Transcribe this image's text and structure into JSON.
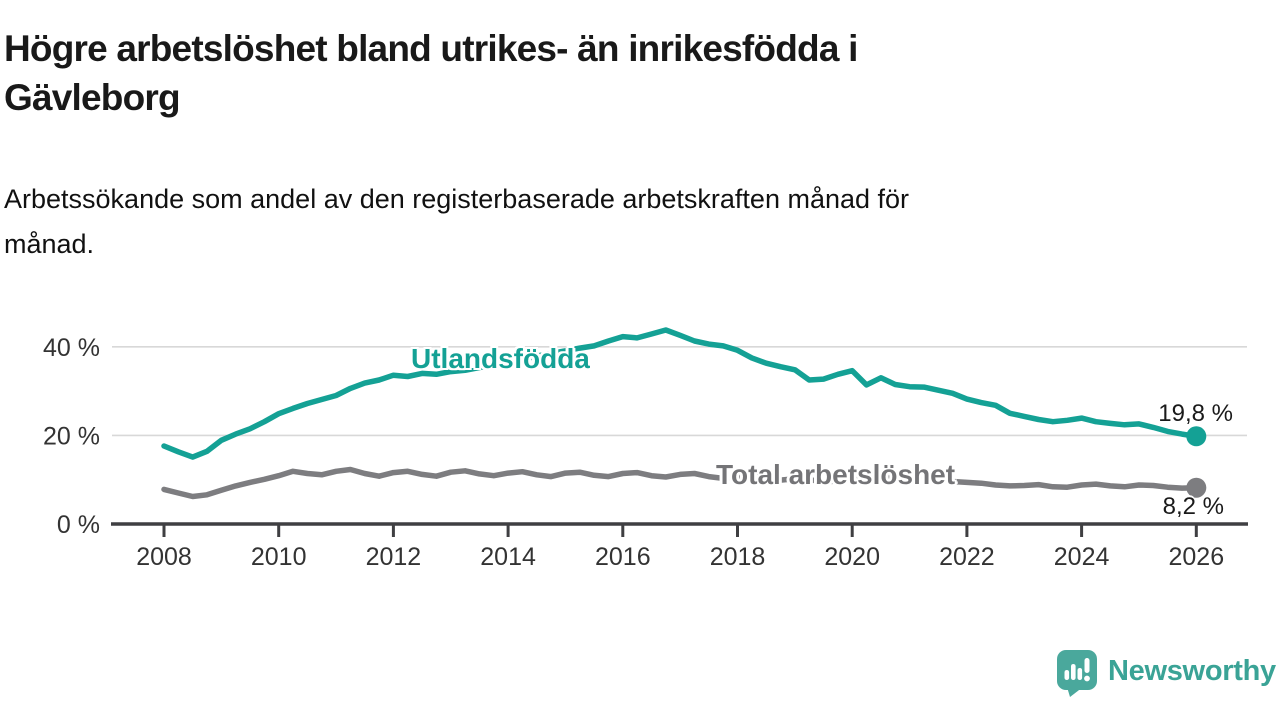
{
  "header": {
    "title_lines": [
      "Högre arbetslöshet bland utrikes- än inrikesfödda i",
      "Gävleborg"
    ],
    "subtitle_lines": [
      "Arbetssökande som andel av den registerbaserade arbetskraften månad för",
      "månad."
    ]
  },
  "branding": {
    "name": "Newsworthy"
  },
  "colors": {
    "title": "#191919",
    "subtitle": "#111111",
    "axis_text": "#333333",
    "axis_line": "#3f3f42",
    "grid": "#d8d8d8",
    "series_foreign": "#14a195",
    "series_total": "#7d7d80",
    "label_total": "#747477",
    "value_label": "#1a1a1a",
    "logo_icon": "#4aa89c",
    "logo_text": "#3aa396"
  },
  "chart_data": {
    "type": "line",
    "title": "Högre arbetslöshet bland utrikes- än inrikesfödda i Gävleborg",
    "subtitle": "Arbetssökande som andel av den registerbaserade arbetskraften månad för månad.",
    "unit": "% av registerbaserad arbetskraft",
    "xlabel": "",
    "ylabel": "",
    "x_range": [
      2008,
      2026
    ],
    "ylim": [
      0,
      45
    ],
    "grid": "horizontal-only",
    "legend_position": "inline-labels",
    "x_ticks": [
      2008,
      2010,
      2012,
      2014,
      2016,
      2018,
      2020,
      2022,
      2024,
      2026
    ],
    "y_ticks": [
      {
        "value": 0,
        "label": "0 %"
      },
      {
        "value": 20,
        "label": "20 %"
      },
      {
        "value": 40,
        "label": "40 %"
      }
    ],
    "series": [
      {
        "id": "utlandsfodda",
        "name": "Utlandsfödda",
        "color": "#14a195",
        "end_label": "19,8 %",
        "last_value": 19.8,
        "x_start": 2008,
        "x_step": 0.25,
        "values": [
          17.6,
          16.3,
          15.1,
          16.4,
          18.9,
          20.3,
          21.5,
          23.1,
          24.9,
          26.1,
          27.2,
          28.1,
          29.0,
          30.6,
          31.8,
          32.5,
          33.6,
          33.3,
          34.0,
          33.8,
          34.4,
          34.7,
          35.3,
          35.9,
          36.5,
          37.1,
          37.9,
          38.5,
          39.1,
          39.7,
          40.2,
          41.3,
          42.3,
          42.0,
          42.9,
          43.8,
          42.6,
          41.3,
          40.6,
          40.2,
          39.2,
          37.5,
          36.3,
          35.5,
          34.8,
          32.5,
          32.7,
          33.8,
          34.6,
          31.4,
          33.0,
          31.5,
          31.0,
          30.9,
          30.2,
          29.5,
          28.2,
          27.4,
          26.8,
          25.0,
          24.3,
          23.6,
          23.1,
          23.4,
          23.9,
          23.1,
          22.7,
          22.4,
          22.6,
          21.8,
          20.9,
          20.3,
          19.8
        ]
      },
      {
        "id": "total",
        "name": "Total arbetslöshet",
        "color": "#7d7d80",
        "end_label": "8,2 %",
        "last_value": 8.2,
        "x_start": 2008,
        "x_step": 0.25,
        "values": [
          7.8,
          7.0,
          6.2,
          6.6,
          7.6,
          8.6,
          9.4,
          10.1,
          10.9,
          11.9,
          11.4,
          11.1,
          11.9,
          12.3,
          11.4,
          10.8,
          11.6,
          11.9,
          11.2,
          10.8,
          11.7,
          12.0,
          11.3,
          10.9,
          11.5,
          11.8,
          11.1,
          10.7,
          11.5,
          11.7,
          11.0,
          10.7,
          11.4,
          11.6,
          10.9,
          10.6,
          11.2,
          11.4,
          10.7,
          10.3,
          10.8,
          10.9,
          10.2,
          9.9,
          10.2,
          10.0,
          9.5,
          9.7,
          10.1,
          11.2,
          11.0,
          10.7,
          10.9,
          10.6,
          10.1,
          9.6,
          9.4,
          9.2,
          8.8,
          8.6,
          8.7,
          8.9,
          8.4,
          8.3,
          8.8,
          9.0,
          8.6,
          8.4,
          8.8,
          8.7,
          8.3,
          8.1,
          8.2
        ]
      }
    ]
  }
}
